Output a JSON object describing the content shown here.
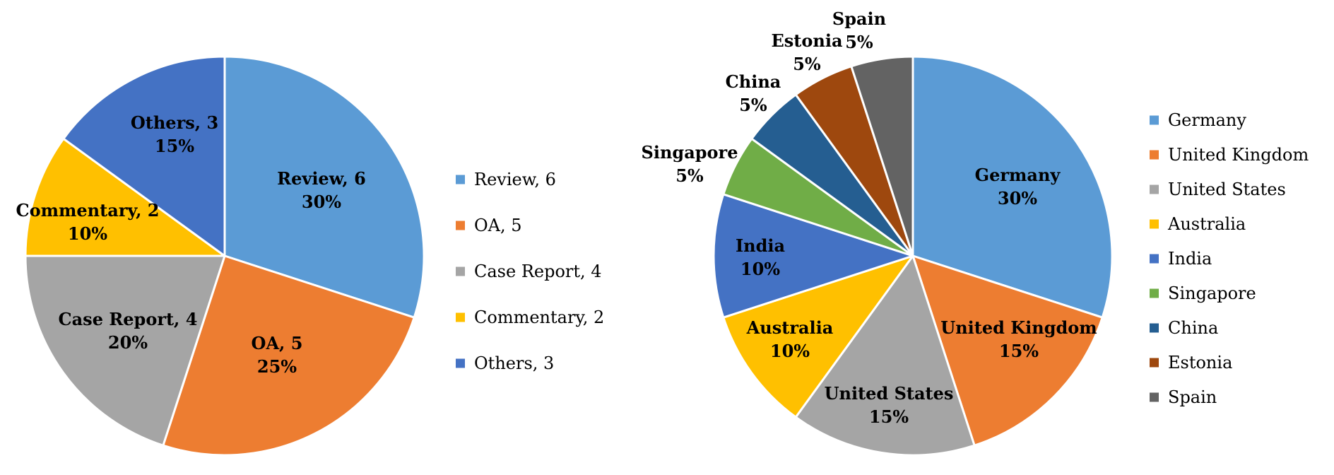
{
  "chart_data": [
    {
      "type": "pie",
      "slices": [
        {
          "name": "Review",
          "value": 6,
          "percent": "30%",
          "label": "Review, 6",
          "color": "#5B9BD5"
        },
        {
          "name": "OA",
          "value": 5,
          "percent": "25%",
          "label": "OA, 5",
          "color": "#ED7D31"
        },
        {
          "name": "Case Report",
          "value": 4,
          "percent": "20%",
          "label": "Case Report, 4",
          "color": "#A5A5A5"
        },
        {
          "name": "Commentary",
          "value": 2,
          "percent": "10%",
          "label": "Commentary, 2",
          "color": "#FFC000"
        },
        {
          "name": "Others",
          "value": 3,
          "percent": "15%",
          "label": "Others, 3",
          "color": "#4472C4"
        }
      ],
      "legend": [
        "Review, 6",
        "OA, 5",
        "Case Report, 4",
        "Commentary, 2",
        "Others, 3"
      ],
      "legend_placement": "right"
    },
    {
      "type": "pie",
      "slices": [
        {
          "name": "Germany",
          "value": 30,
          "percent": "30%",
          "label": "Germany",
          "color": "#5B9BD5"
        },
        {
          "name": "United Kingdom",
          "value": 15,
          "percent": "15%",
          "label": "United Kingdom",
          "color": "#ED7D31"
        },
        {
          "name": "United States",
          "value": 15,
          "percent": "15%",
          "label": "United States",
          "color": "#A5A5A5"
        },
        {
          "name": "Australia",
          "value": 10,
          "percent": "10%",
          "label": "Australia",
          "color": "#FFC000"
        },
        {
          "name": "India",
          "value": 10,
          "percent": "10%",
          "label": "India",
          "color": "#4472C4"
        },
        {
          "name": "Singapore",
          "value": 5,
          "percent": "5%",
          "label": "Singapore",
          "color": "#70AD47"
        },
        {
          "name": "China",
          "value": 5,
          "percent": "5%",
          "label": "China",
          "color": "#255E91"
        },
        {
          "name": "Estonia",
          "value": 5,
          "percent": "5%",
          "label": "Estonia",
          "color": "#9E480E"
        },
        {
          "name": "Spain",
          "value": 5,
          "percent": "5%",
          "label": "Spain",
          "color": "#636363"
        }
      ],
      "legend": [
        "Germany",
        "United Kingdom",
        "United States",
        "Australia",
        "India",
        "Singapore",
        "China",
        "Estonia",
        "Spain"
      ],
      "legend_placement": "right"
    }
  ]
}
